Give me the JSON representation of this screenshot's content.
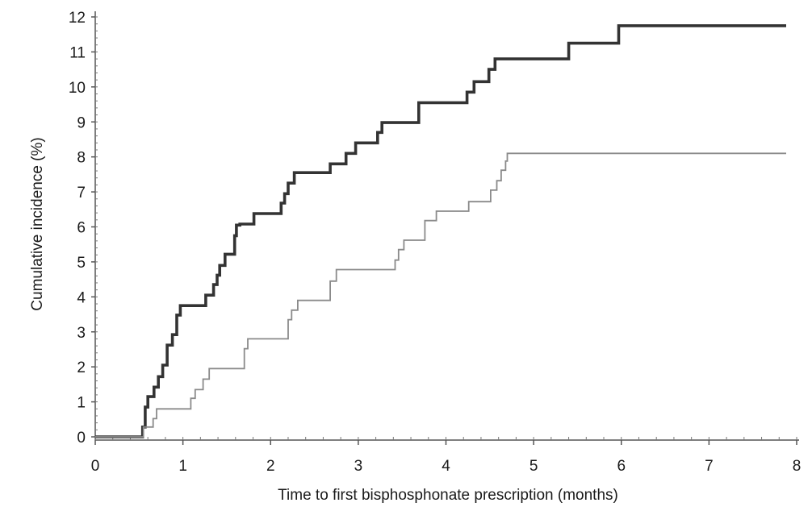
{
  "chart_data": {
    "type": "line",
    "step": true,
    "title": "",
    "xlabel": "Time to first bisphosphonate prescription (months)",
    "ylabel": "Cumulative incidence (%)",
    "xlim": [
      0,
      8
    ],
    "ylim": [
      0,
      12
    ],
    "x_ticks": [
      "0",
      "1",
      "2",
      "3",
      "4",
      "5",
      "6",
      "7",
      "8"
    ],
    "y_ticks": [
      "0",
      "1",
      "2",
      "3",
      "4",
      "5",
      "6",
      "7",
      "8",
      "9",
      "10",
      "11",
      "12"
    ],
    "grid": false,
    "legend": "none",
    "series": [
      {
        "color": "#333333",
        "line": "thick",
        "x": [
          0,
          0.54,
          0.57,
          0.6,
          0.67,
          0.72,
          0.77,
          0.82,
          0.88,
          0.93,
          0.97,
          1.06,
          1.26,
          1.35,
          1.39,
          1.42,
          1.48,
          1.52,
          1.59,
          1.61,
          1.65,
          1.81,
          2.12,
          2.16,
          2.2,
          2.27,
          2.68,
          2.86,
          2.97,
          3.02,
          3.22,
          3.27,
          3.69,
          4.24,
          4.32,
          4.49,
          4.56,
          5.4,
          5.97,
          7.88
        ],
        "y": [
          0,
          0.28,
          0.85,
          1.15,
          1.42,
          1.72,
          2.05,
          2.62,
          2.92,
          3.48,
          3.75,
          3.75,
          4.05,
          4.35,
          4.62,
          4.9,
          5.22,
          5.22,
          5.75,
          6.05,
          6.08,
          6.38,
          6.68,
          6.95,
          7.25,
          7.55,
          7.8,
          8.1,
          8.4,
          8.4,
          8.7,
          8.98,
          9.55,
          9.85,
          10.15,
          10.5,
          10.8,
          11.25,
          11.75,
          11.75
        ]
      },
      {
        "color": "#8a8a8a",
        "line": "thin",
        "x": [
          0,
          0.55,
          0.66,
          0.7,
          0.93,
          1.09,
          1.14,
          1.23,
          1.3,
          1.39,
          1.7,
          1.74,
          2.2,
          2.24,
          2.31,
          2.4,
          2.68,
          2.75,
          2.86,
          3.42,
          3.46,
          3.52,
          3.69,
          3.76,
          3.8,
          3.89,
          3.96,
          4.26,
          4.51,
          4.58,
          4.63,
          4.68,
          4.7,
          4.74,
          4.78,
          7.88
        ],
        "y": [
          0,
          0.28,
          0.52,
          0.8,
          0.8,
          1.1,
          1.35,
          1.65,
          1.95,
          1.95,
          2.52,
          2.8,
          3.35,
          3.62,
          3.9,
          3.9,
          4.45,
          4.78,
          4.78,
          5.05,
          5.35,
          5.62,
          5.62,
          6.18,
          6.18,
          6.45,
          6.45,
          6.72,
          7.05,
          7.32,
          7.62,
          7.88,
          8.1,
          8.1,
          8.1,
          8.1
        ]
      }
    ]
  }
}
